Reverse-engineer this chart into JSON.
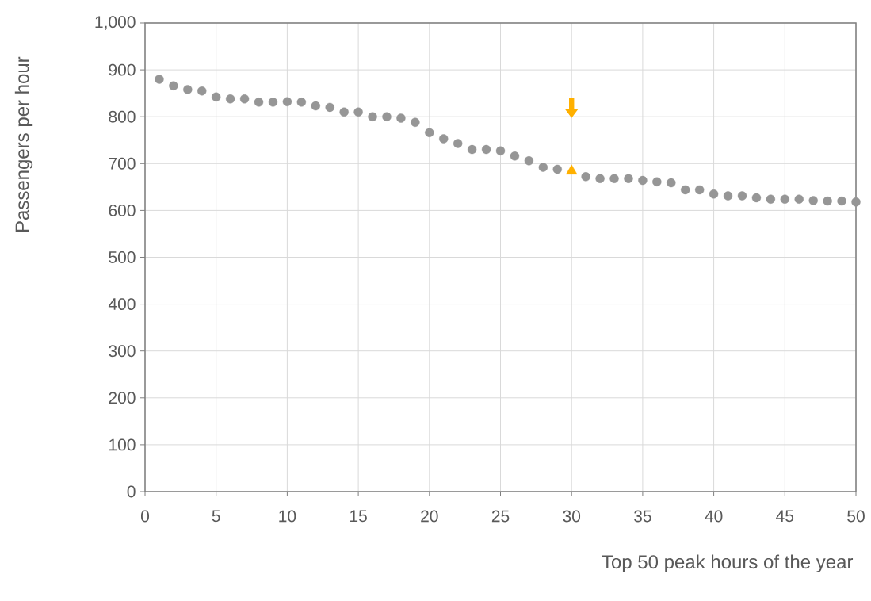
{
  "chart_data": {
    "type": "scatter",
    "xlabel": "Top 50 peak hours of the year",
    "ylabel": "Passengers per hour",
    "series": [
      {
        "color": "#969696",
        "marker": "circle",
        "x": [
          1,
          2,
          3,
          4,
          5,
          6,
          7,
          8,
          9,
          10,
          11,
          12,
          13,
          14,
          15,
          16,
          17,
          18,
          19,
          20,
          21,
          22,
          23,
          24,
          25,
          26,
          27,
          28,
          29,
          31,
          32,
          33,
          34,
          35,
          36,
          37,
          38,
          39,
          40,
          41,
          42,
          43,
          44,
          45,
          46,
          47,
          48,
          49,
          50
        ],
        "values": [
          880,
          866,
          858,
          855,
          842,
          838,
          838,
          831,
          831,
          832,
          831,
          823,
          820,
          810,
          810,
          800,
          800,
          797,
          788,
          766,
          753,
          743,
          730,
          730,
          727,
          716,
          706,
          692,
          688,
          672,
          668,
          668,
          668,
          664,
          661,
          659,
          644,
          644,
          635,
          631,
          631,
          627,
          624,
          624,
          624,
          621,
          620,
          620,
          618
        ]
      },
      {
        "color": "#ffb000",
        "marker": "triangle",
        "x": [
          30
        ],
        "values": [
          684
        ]
      }
    ],
    "xlim": [
      0,
      50
    ],
    "xticks": [
      0,
      5,
      10,
      15,
      20,
      25,
      30,
      35,
      40,
      45,
      50
    ],
    "ylim": [
      0,
      1000
    ],
    "yticks": [
      0,
      100,
      200,
      300,
      400,
      500,
      600,
      700,
      800,
      900,
      {
        "value": 1000,
        "label": "1,000"
      }
    ],
    "grid": true
  }
}
